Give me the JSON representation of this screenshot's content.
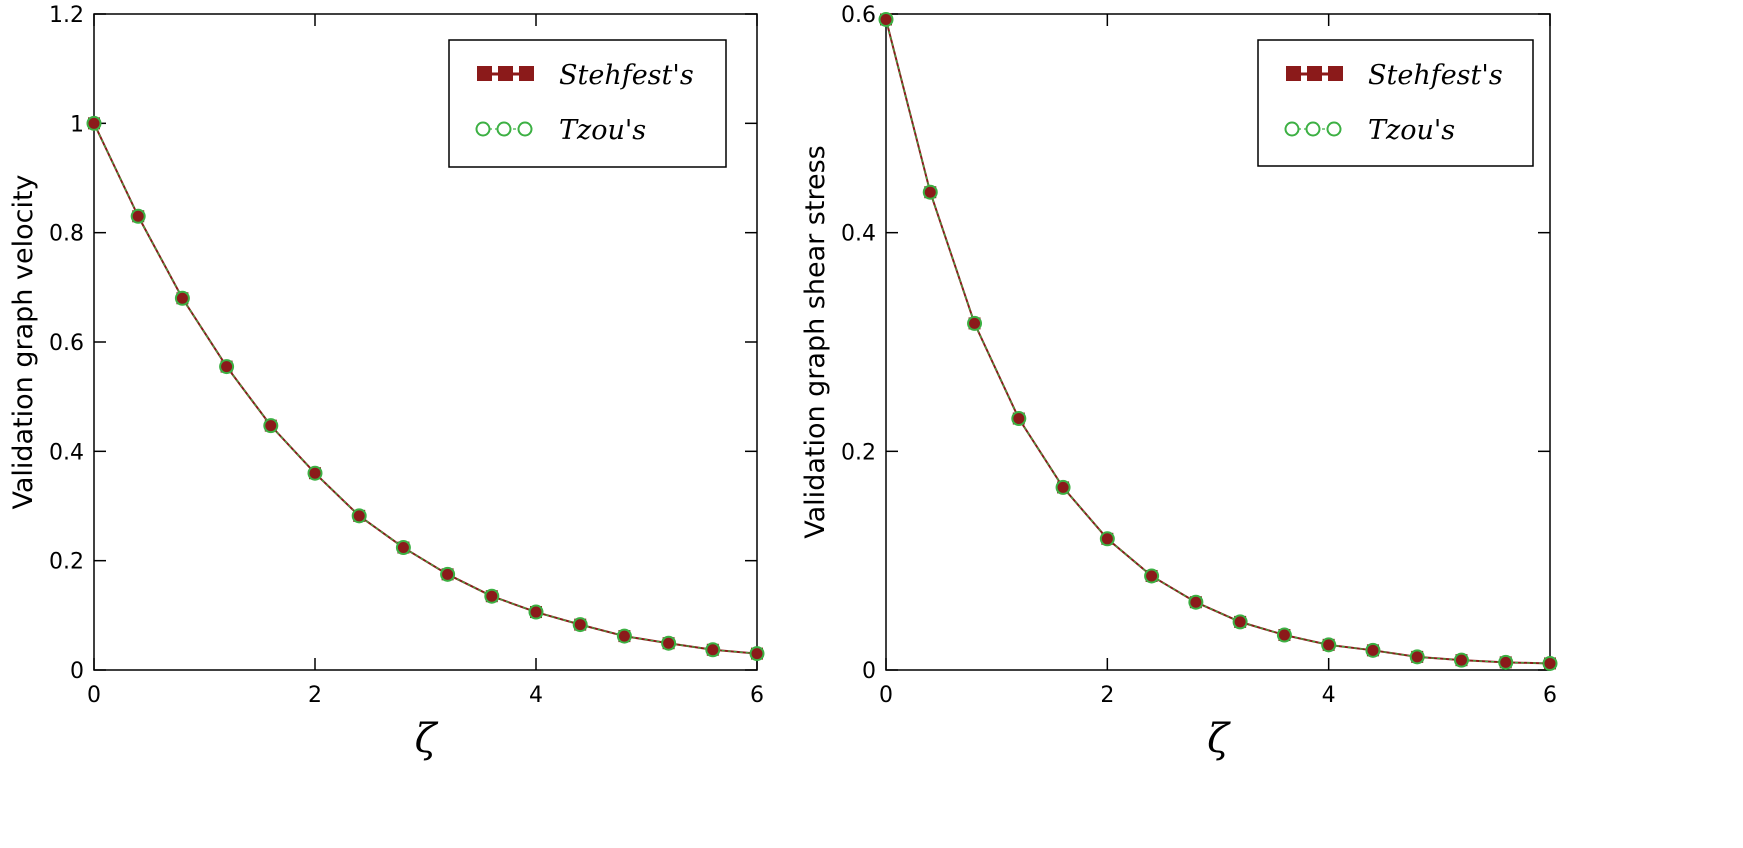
{
  "chart_data": [
    {
      "type": "line",
      "xlabel": "ζ",
      "ylabel": "Validation graph velocity",
      "xlim": [
        0,
        6
      ],
      "ylim": [
        0,
        1.2
      ],
      "x_ticks": [
        "0",
        "2",
        "4",
        "6"
      ],
      "y_ticks": [
        "0",
        "0.2",
        "0.4",
        "0.6",
        "0.8",
        "1",
        "1.2"
      ],
      "x": [
        0,
        0.4,
        0.8,
        1.2,
        1.6,
        2.0,
        2.4,
        2.8,
        3.2,
        3.6,
        4.0,
        4.4,
        4.8,
        5.2,
        5.6,
        6.0
      ],
      "series": [
        {
          "name": "Stehfest's",
          "marker": "square",
          "color": "#8b1a1a",
          "values": [
            1.0,
            0.83,
            0.68,
            0.555,
            0.447,
            0.36,
            0.282,
            0.224,
            0.175,
            0.135,
            0.106,
            0.083,
            0.062,
            0.049,
            0.037,
            0.03
          ]
        },
        {
          "name": "Tzou's",
          "marker": "circle",
          "color": "#3cb043",
          "values": [
            1.0,
            0.83,
            0.68,
            0.555,
            0.447,
            0.36,
            0.282,
            0.224,
            0.175,
            0.135,
            0.106,
            0.083,
            0.062,
            0.049,
            0.037,
            0.03
          ]
        }
      ],
      "legend_position": "top-right"
    },
    {
      "type": "line",
      "xlabel": "ζ",
      "ylabel": "Validation graph shear stress",
      "xlim": [
        0,
        6
      ],
      "ylim": [
        0,
        0.6
      ],
      "x_ticks": [
        "0",
        "2",
        "4",
        "6"
      ],
      "y_ticks": [
        "0",
        "0.2",
        "0.4",
        "0.6"
      ],
      "x": [
        0,
        0.4,
        0.8,
        1.2,
        1.6,
        2.0,
        2.4,
        2.8,
        3.2,
        3.6,
        4.0,
        4.4,
        4.8,
        5.2,
        5.6,
        6.0
      ],
      "series": [
        {
          "name": "Stehfest's",
          "marker": "square",
          "color": "#8b1a1a",
          "values": [
            0.595,
            0.437,
            0.317,
            0.23,
            0.167,
            0.12,
            0.086,
            0.062,
            0.044,
            0.032,
            0.023,
            0.018,
            0.012,
            0.009,
            0.007,
            0.006
          ]
        },
        {
          "name": "Tzou's",
          "marker": "circle",
          "color": "#3cb043",
          "values": [
            0.595,
            0.437,
            0.317,
            0.23,
            0.167,
            0.12,
            0.086,
            0.062,
            0.044,
            0.032,
            0.023,
            0.018,
            0.012,
            0.009,
            0.007,
            0.006
          ]
        }
      ],
      "legend_position": "top-right"
    }
  ]
}
